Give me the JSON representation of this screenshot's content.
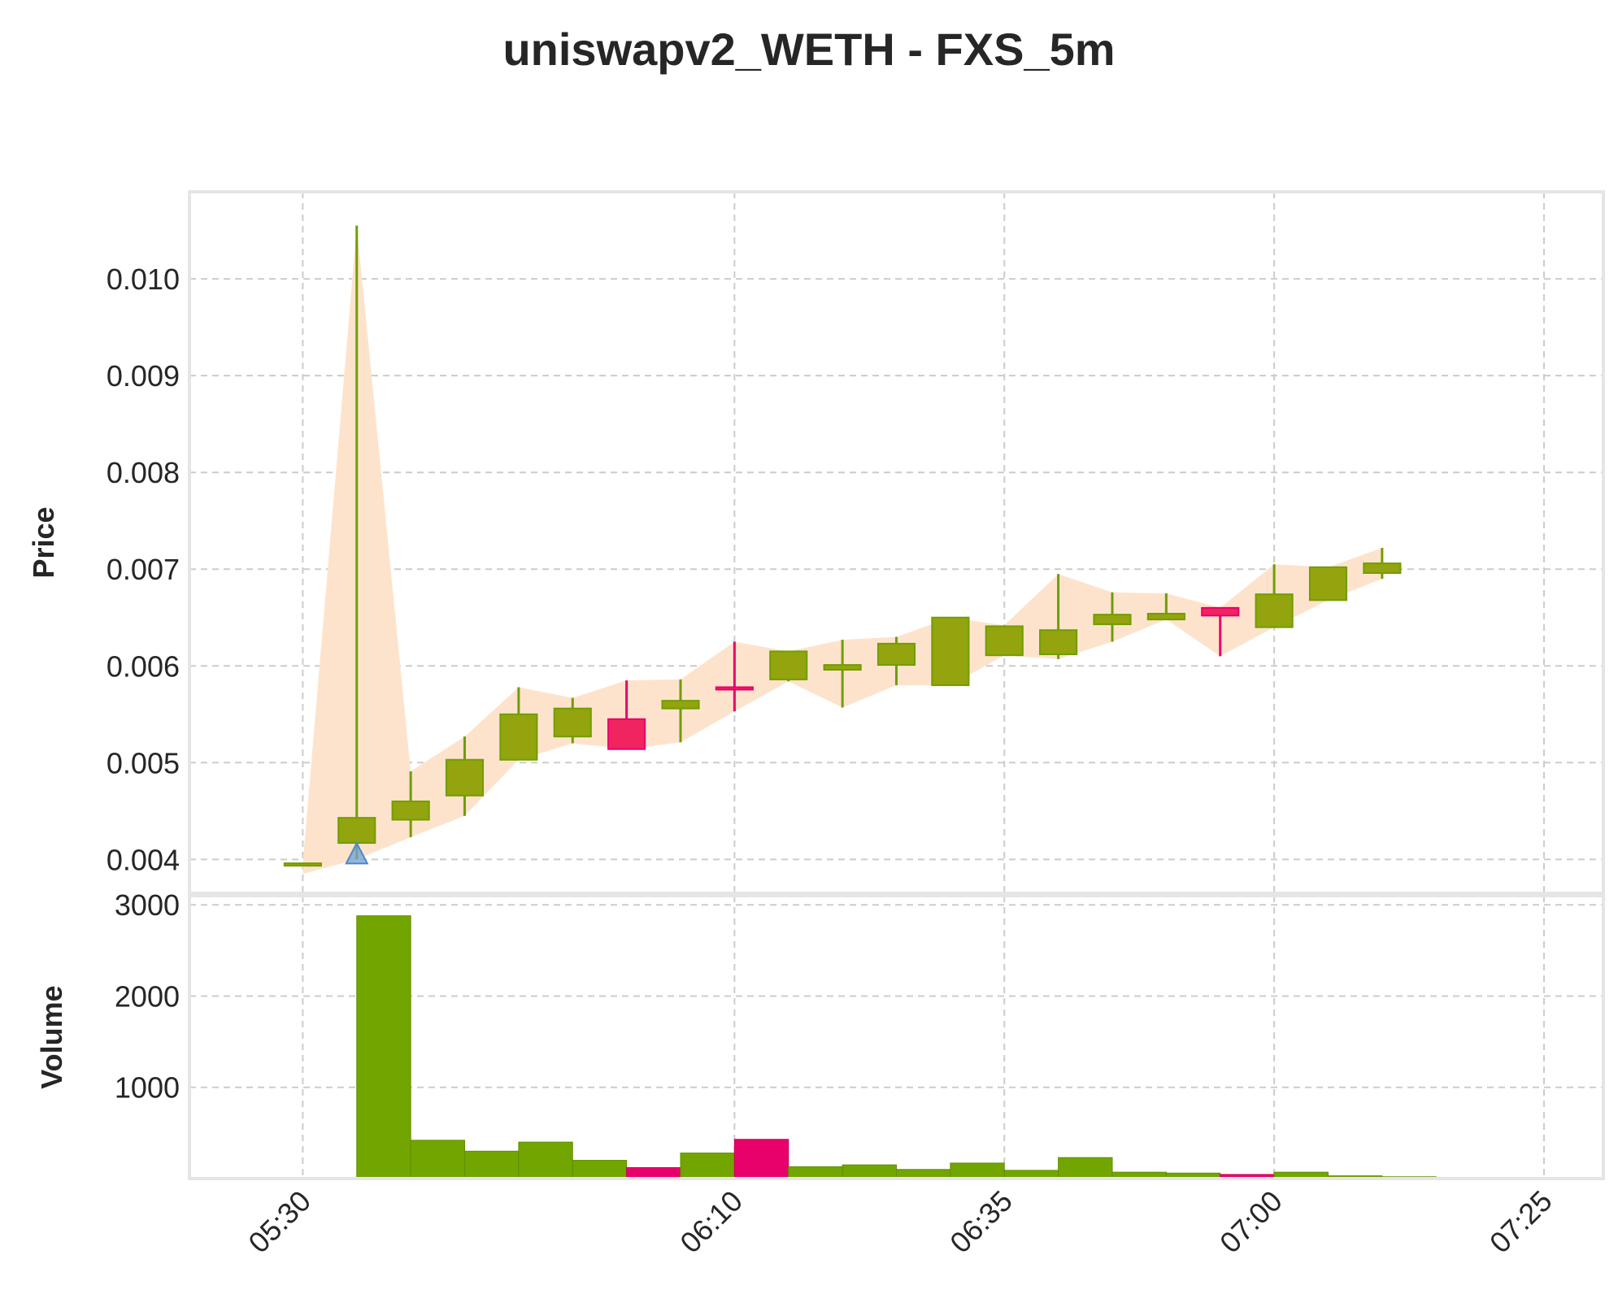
{
  "chart_data": {
    "type": "candlestick",
    "title": "uniswapv2_WETH - FXS_5m",
    "price_axis": {
      "label": "Price",
      "ylim": [
        0.00365,
        0.0109
      ],
      "ticks": [
        0.004,
        0.005,
        0.006,
        0.007,
        0.008,
        0.009,
        0.01
      ],
      "tick_labels": [
        "0.004",
        "0.005",
        "0.006",
        "0.007",
        "0.008",
        "0.009",
        "0.010"
      ]
    },
    "volume_axis": {
      "label": "Volume",
      "ylim": [
        0,
        3100
      ],
      "ticks": [
        1000,
        2000,
        3000
      ],
      "tick_labels": [
        "1000",
        "2000",
        "3000"
      ]
    },
    "x_axis": {
      "ticks": [
        0,
        8,
        13,
        18,
        23
      ],
      "tick_labels": [
        "05:30",
        "06:10",
        "06:35",
        "07:00",
        "07:25"
      ]
    },
    "x_range": [
      -2.1,
      24.1
    ],
    "candles": [
      {
        "time": "05:30",
        "open": 0.00396,
        "high": 0.00396,
        "low": 0.00396,
        "close": 0.00396,
        "volume": 0
      },
      {
        "time": "05:35",
        "open": 0.00417,
        "high": 0.01055,
        "low": 0.004,
        "close": 0.00443,
        "volume": 2880
      },
      {
        "time": "05:40",
        "open": 0.00441,
        "high": 0.00491,
        "low": 0.00423,
        "close": 0.0046,
        "volume": 420
      },
      {
        "time": "05:45",
        "open": 0.00466,
        "high": 0.00527,
        "low": 0.00445,
        "close": 0.00503,
        "volume": 300
      },
      {
        "time": "05:50",
        "open": 0.00503,
        "high": 0.00578,
        "low": 0.00503,
        "close": 0.0055,
        "volume": 400
      },
      {
        "time": "05:55",
        "open": 0.00527,
        "high": 0.00567,
        "low": 0.0052,
        "close": 0.00556,
        "volume": 200
      },
      {
        "time": "06:00",
        "open": 0.00545,
        "high": 0.00585,
        "low": 0.00514,
        "close": 0.00514,
        "volume": 120
      },
      {
        "time": "06:05",
        "open": 0.00556,
        "high": 0.00586,
        "low": 0.00521,
        "close": 0.00564,
        "volume": 280
      },
      {
        "time": "06:10",
        "open": 0.00578,
        "high": 0.00625,
        "low": 0.00553,
        "close": 0.00576,
        "volume": 430
      },
      {
        "time": "06:15",
        "open": 0.00586,
        "high": 0.00615,
        "low": 0.00584,
        "close": 0.00615,
        "volume": 130
      },
      {
        "time": "06:20",
        "open": 0.00596,
        "high": 0.00627,
        "low": 0.00557,
        "close": 0.00601,
        "volume": 150
      },
      {
        "time": "06:25",
        "open": 0.00601,
        "high": 0.0063,
        "low": 0.0058,
        "close": 0.00623,
        "volume": 100
      },
      {
        "time": "06:30",
        "open": 0.0058,
        "high": 0.0065,
        "low": 0.0058,
        "close": 0.0065,
        "volume": 170
      },
      {
        "time": "06:35",
        "open": 0.00611,
        "high": 0.00642,
        "low": 0.00611,
        "close": 0.00641,
        "volume": 90
      },
      {
        "time": "06:40",
        "open": 0.00612,
        "high": 0.00695,
        "low": 0.00607,
        "close": 0.00637,
        "volume": 230
      },
      {
        "time": "06:45",
        "open": 0.00643,
        "high": 0.00676,
        "low": 0.00625,
        "close": 0.00653,
        "volume": 70
      },
      {
        "time": "06:50",
        "open": 0.00648,
        "high": 0.00675,
        "low": 0.00648,
        "close": 0.00654,
        "volume": 60
      },
      {
        "time": "06:55",
        "open": 0.0066,
        "high": 0.0066,
        "low": 0.0061,
        "close": 0.00652,
        "volume": 45
      },
      {
        "time": "07:00",
        "open": 0.0064,
        "high": 0.00705,
        "low": 0.0064,
        "close": 0.00674,
        "volume": 70
      },
      {
        "time": "07:05",
        "open": 0.00668,
        "high": 0.00702,
        "low": 0.00668,
        "close": 0.00702,
        "volume": 30
      },
      {
        "time": "07:10",
        "open": 0.00696,
        "high": 0.00722,
        "low": 0.0069,
        "close": 0.00706,
        "volume": 20
      }
    ],
    "band": {
      "upper": [
        0.00396,
        0.01055,
        0.00491,
        0.00527,
        0.00578,
        0.00567,
        0.00585,
        0.00586,
        0.00625,
        0.00615,
        0.00627,
        0.0063,
        0.0065,
        0.00642,
        0.00695,
        0.00676,
        0.00675,
        0.0066,
        0.00705,
        0.00702,
        0.00722
      ],
      "lower": [
        0.00385,
        0.004,
        0.00423,
        0.00445,
        0.00503,
        0.0052,
        0.00514,
        0.00521,
        0.00553,
        0.00584,
        0.00557,
        0.0058,
        0.0058,
        0.00611,
        0.00607,
        0.00625,
        0.00648,
        0.0061,
        0.0064,
        0.00668,
        0.0069
      ]
    },
    "signals": [
      {
        "x": 1,
        "price": 0.004,
        "type": "buy"
      }
    ],
    "colors": {
      "up_body": "#93a40f",
      "up_edge": "#6f9e00",
      "down_body": "#f0245f",
      "down_edge": "#e8006b",
      "band_fill": "#fee3cc",
      "vol_up": "#72a500",
      "vol_down": "#e8006b",
      "signal": "#6ea1d4"
    },
    "grid": true
  }
}
